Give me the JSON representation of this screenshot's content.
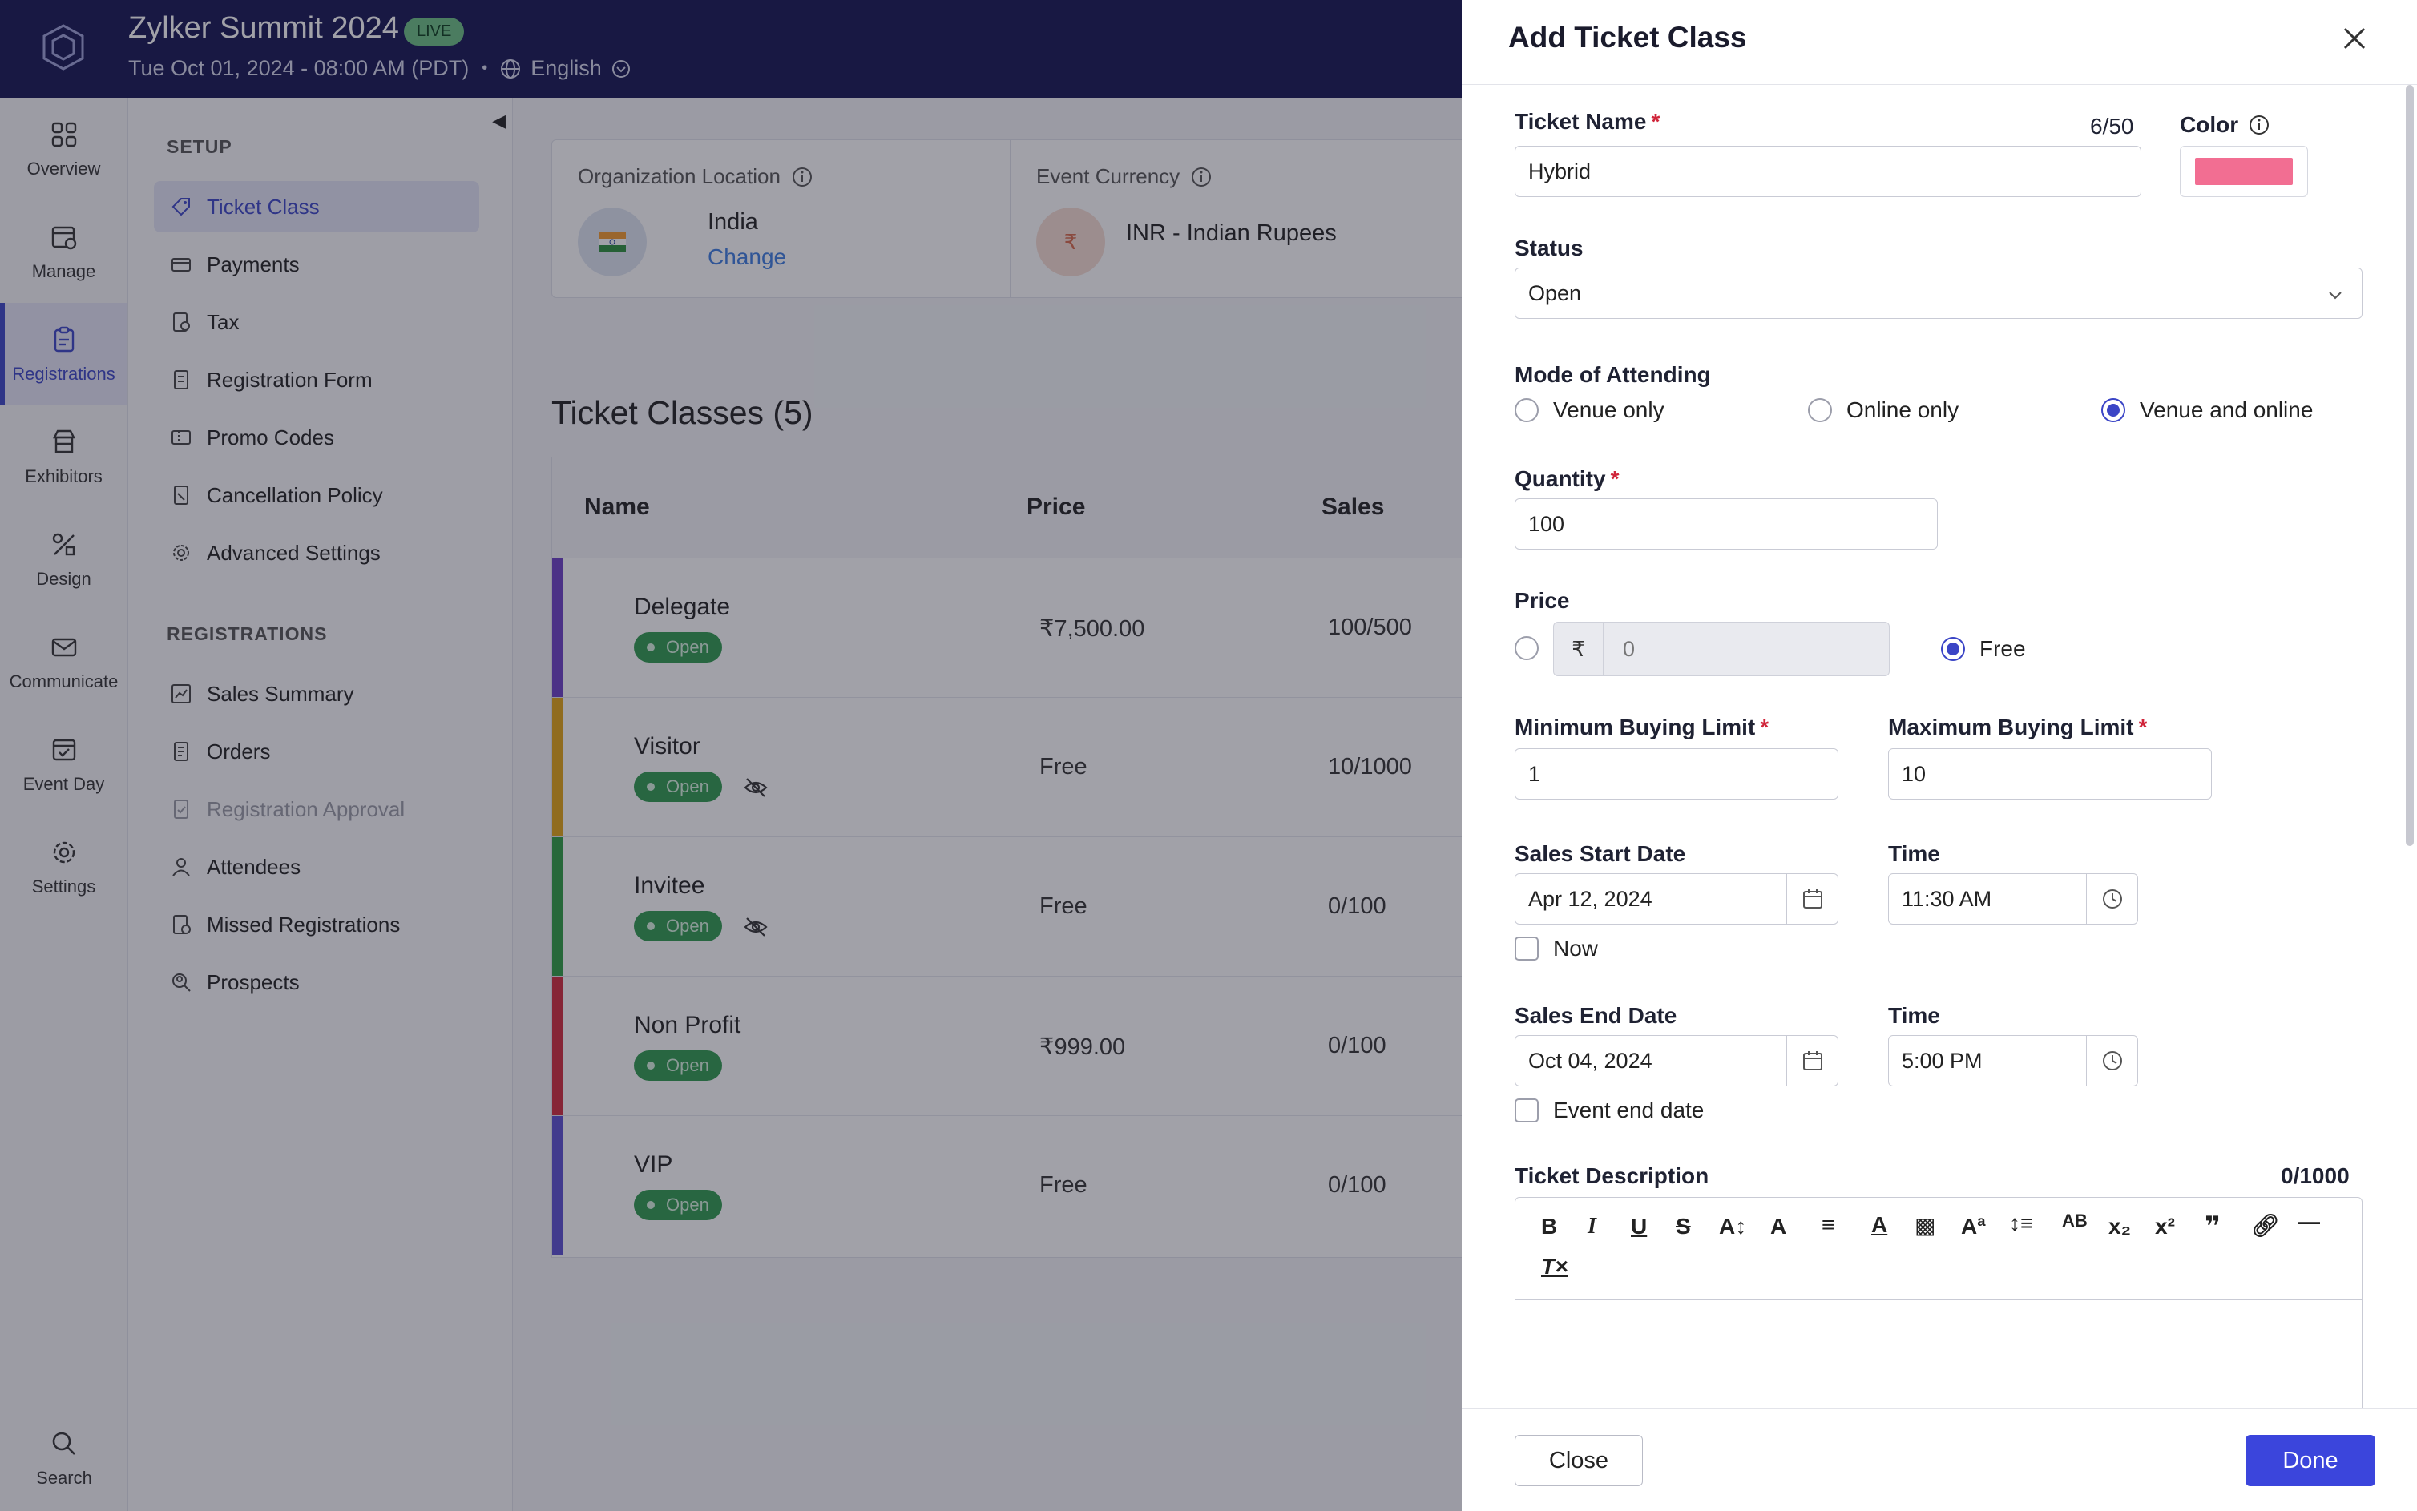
{
  "header": {
    "title": "Zylker Summit 2024",
    "live_badge": "LIVE",
    "datetime": "Tue Oct 01, 2024 - 08:00 AM (PDT)",
    "language": "English"
  },
  "nav": {
    "items": [
      {
        "label": "Overview"
      },
      {
        "label": "Manage"
      },
      {
        "label": "Registrations"
      },
      {
        "label": "Exhibitors"
      },
      {
        "label": "Design"
      },
      {
        "label": "Communicate"
      },
      {
        "label": "Event Day"
      },
      {
        "label": "Settings"
      }
    ],
    "search": "Search"
  },
  "sidebar": {
    "setup_title": "SETUP",
    "setup_items": [
      "Ticket Class",
      "Payments",
      "Tax",
      "Registration Form",
      "Promo Codes",
      "Cancellation Policy",
      "Advanced Settings"
    ],
    "reg_title": "REGISTRATIONS",
    "reg_items": [
      "Sales Summary",
      "Orders",
      "Registration Approval",
      "Attendees",
      "Missed Registrations",
      "Prospects"
    ]
  },
  "org": {
    "location_label": "Organization Location",
    "location_value": "India",
    "change_link": "Change",
    "currency_label": "Event Currency",
    "currency_value": "INR - Indian Rupees",
    "currency_symbol": "₹"
  },
  "tickets": {
    "title": "Ticket Classes (5)",
    "columns": [
      "Name",
      "Price",
      "Sales"
    ],
    "rows": [
      {
        "name": "Delegate",
        "status": "Open",
        "price": "₹7,500.00",
        "sales": "100/500",
        "color": "#6c3fc4"
      },
      {
        "name": "Visitor",
        "status": "Open",
        "price": "Free",
        "sales": "10/1000",
        "color": "#e2a413"
      },
      {
        "name": "Invitee",
        "status": "Open",
        "price": "Free",
        "sales": "0/100",
        "color": "#2e9e43"
      },
      {
        "name": "Non Profit",
        "status": "Open",
        "price": "₹999.00",
        "sales": "0/100",
        "color": "#d12a3c"
      },
      {
        "name": "VIP",
        "status": "Open",
        "price": "Free",
        "sales": "0/100",
        "color": "#5a4fd1"
      }
    ]
  },
  "panel": {
    "title": "Add Ticket Class",
    "ticket_name_label": "Ticket Name",
    "ticket_name_value": "Hybrid",
    "ticket_name_count": "6/50",
    "color_label": "Color",
    "color_value": "#f26e92",
    "status_label": "Status",
    "status_value": "Open",
    "mode_label": "Mode of Attending",
    "mode_options": [
      "Venue only",
      "Online only",
      "Venue and online"
    ],
    "quantity_label": "Quantity",
    "quantity_value": "100",
    "price_label": "Price",
    "price_currency": "₹",
    "price_value": "0",
    "price_free_label": "Free",
    "min_label": "Minimum Buying Limit",
    "min_value": "1",
    "max_label": "Maximum Buying Limit",
    "max_value": "10",
    "start_date_label": "Sales Start Date",
    "start_date_value": "Apr 12, 2024",
    "time_label": "Time",
    "start_time_value": "11:30 AM",
    "now_label": "Now",
    "end_date_label": "Sales End Date",
    "end_date_value": "Oct 04, 2024",
    "end_time_value": "5:00 PM",
    "event_end_label": "Event end date",
    "desc_label": "Ticket Description",
    "desc_count": "0/1000",
    "close_button": "Close",
    "done_button": "Done"
  }
}
